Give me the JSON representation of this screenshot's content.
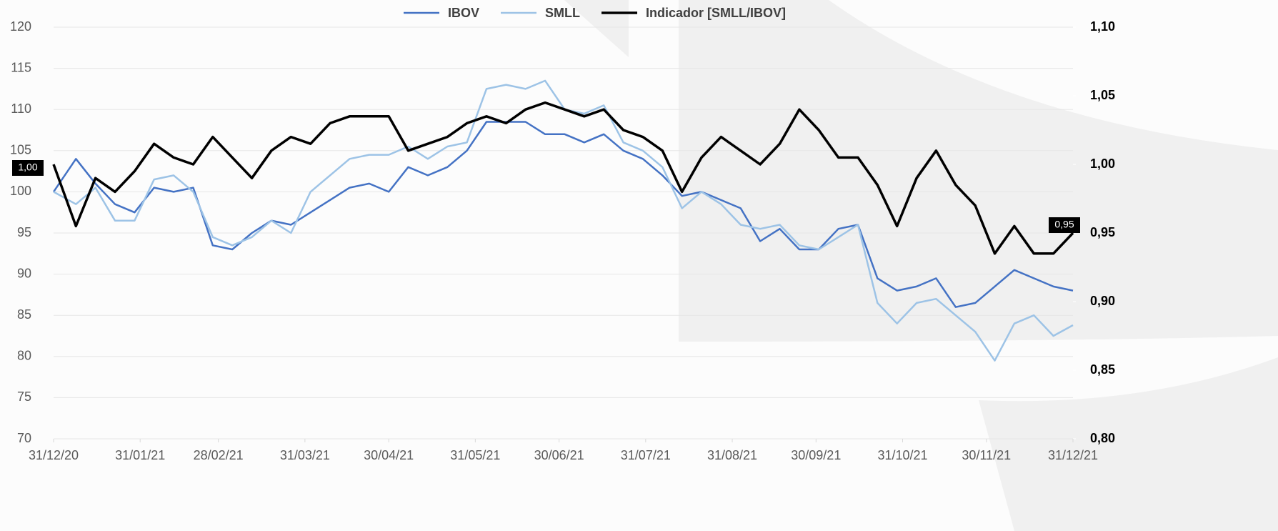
{
  "chart_data": {
    "type": "line",
    "x": [
      "31/12/20",
      "08/01/21",
      "15/01/21",
      "22/01/21",
      "29/01/21",
      "05/02/21",
      "12/02/21",
      "19/02/21",
      "26/02/21",
      "05/03/21",
      "12/03/21",
      "19/03/21",
      "26/03/21",
      "02/04/21",
      "09/04/21",
      "16/04/21",
      "23/04/21",
      "30/04/21",
      "07/05/21",
      "14/05/21",
      "21/05/21",
      "28/05/21",
      "04/06/21",
      "11/06/21",
      "18/06/21",
      "25/06/21",
      "02/07/21",
      "09/07/21",
      "16/07/21",
      "23/07/21",
      "30/07/21",
      "06/08/21",
      "13/08/21",
      "20/08/21",
      "27/08/21",
      "03/09/21",
      "10/09/21",
      "17/09/21",
      "24/09/21",
      "01/10/21",
      "08/10/21",
      "15/10/21",
      "22/10/21",
      "29/10/21",
      "05/11/21",
      "12/11/21",
      "19/11/21",
      "26/11/21",
      "03/12/21",
      "10/12/21",
      "17/12/21",
      "24/12/21",
      "31/12/21"
    ],
    "series": [
      {
        "name": "IBOV",
        "color": "#4472c4",
        "values": [
          100,
          104,
          101,
          98.5,
          97.5,
          100.5,
          100,
          100.5,
          93.5,
          93,
          95,
          96.5,
          96,
          97.5,
          99,
          100.5,
          101,
          100,
          103,
          102,
          103,
          105,
          108.5,
          108.5,
          108.5,
          107,
          107,
          106,
          107,
          105,
          104,
          102,
          99.5,
          100,
          99,
          98,
          94,
          95.5,
          93,
          93,
          95.5,
          96,
          89.5,
          88,
          88.5,
          89.5,
          86,
          86.5,
          88.5,
          90.5,
          89.5,
          88.5,
          88
        ]
      },
      {
        "name": "SMLL",
        "color": "#9dc3e6",
        "values": [
          100,
          98.5,
          100.5,
          96.5,
          96.5,
          101.5,
          102,
          100,
          94.5,
          93.5,
          94.5,
          96.5,
          95,
          100,
          102,
          104,
          104.5,
          104.5,
          105.5,
          104,
          105.5,
          106,
          112.5,
          113,
          112.5,
          113.5,
          110,
          109.5,
          110.5,
          106,
          105,
          103,
          98,
          100,
          98.5,
          96,
          95.5,
          96,
          93.5,
          93,
          94.5,
          96,
          86.5,
          84,
          86.5,
          87,
          85,
          83,
          79.5,
          84,
          85,
          82.5,
          83.8
        ]
      },
      {
        "name": "Indicador [SMLL/IBOV]",
        "color": "#000000",
        "axis": "y2",
        "values": [
          1.0,
          0.955,
          0.99,
          0.98,
          0.995,
          1.015,
          1.005,
          1.0,
          1.02,
          1.005,
          0.99,
          1.01,
          1.02,
          1.015,
          1.03,
          1.035,
          1.035,
          1.035,
          1.01,
          1.015,
          1.02,
          1.03,
          1.035,
          1.03,
          1.04,
          1.045,
          1.04,
          1.035,
          1.04,
          1.025,
          1.02,
          1.01,
          0.98,
          1.005,
          1.02,
          1.01,
          1.0,
          1.015,
          1.04,
          1.025,
          1.005,
          1.005,
          0.985,
          0.955,
          0.99,
          1.01,
          0.985,
          0.97,
          0.935,
          0.955,
          0.935,
          0.935,
          0.95
        ],
        "value_labels": [
          "1,00",
          null,
          null,
          null,
          null,
          null,
          null,
          null,
          null,
          null,
          null,
          null,
          null,
          null,
          null,
          null,
          null,
          null,
          null,
          null,
          null,
          null,
          null,
          null,
          null,
          null,
          null,
          null,
          null,
          null,
          null,
          null,
          null,
          null,
          null,
          null,
          null,
          null,
          null,
          null,
          null,
          null,
          null,
          null,
          null,
          null,
          null,
          null,
          null,
          null,
          null,
          null,
          "0,95"
        ]
      }
    ],
    "xlim": [
      "31/12/20",
      "31/12/21"
    ],
    "xticks": [
      "31/12/20",
      "31/01/21",
      "28/02/21",
      "31/03/21",
      "30/04/21",
      "31/05/21",
      "30/06/21",
      "31/07/21",
      "31/08/21",
      "30/09/21",
      "31/10/21",
      "30/11/21",
      "31/12/21"
    ],
    "ylim": [
      70,
      120
    ],
    "yticks": [
      70,
      75,
      80,
      85,
      90,
      95,
      100,
      105,
      110,
      115,
      120
    ],
    "y2lim": [
      0.8,
      1.1
    ],
    "y2ticks": [
      {
        "value": 0.8,
        "label": "0,80"
      },
      {
        "value": 0.85,
        "label": "0,85"
      },
      {
        "value": 0.9,
        "label": "0,90"
      },
      {
        "value": 0.95,
        "label": "0,95"
      },
      {
        "value": 1.0,
        "label": "1,00"
      },
      {
        "value": 1.05,
        "label": "1,05"
      },
      {
        "value": 1.1,
        "label": "1,10"
      }
    ],
    "grid": true,
    "legend": "top"
  }
}
